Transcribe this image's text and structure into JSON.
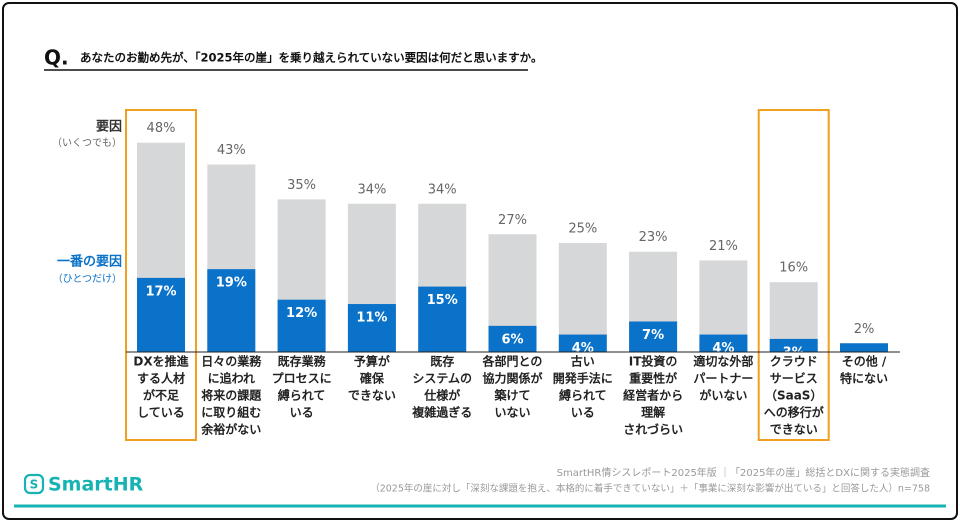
{
  "chart_data": {
    "type": "overlap-bar",
    "question_mark": "Q.",
    "title": "あなたのお勤め先が、「2025年の崖」を乗り越えられていない要因は何だと思いますか。",
    "categories": [
      [
        "DXを推進",
        "する人材",
        "が不足",
        "している"
      ],
      [
        "日々の業務",
        "に追われ",
        "将来の課題",
        "に取り組む",
        "余裕がない"
      ],
      [
        "既存業務",
        "プロセスに",
        "縛られて",
        "いる"
      ],
      [
        "予算が",
        "確保",
        "できない"
      ],
      [
        "既存",
        "システムの",
        "仕様が",
        "複雑過ぎる"
      ],
      [
        "各部門との",
        "協力関係が",
        "築けて",
        "いない"
      ],
      [
        "古い",
        "開発手法に",
        "縛られて",
        "いる"
      ],
      [
        "IT投資の",
        "重要性が",
        "経営者から",
        "理解",
        "されづらい"
      ],
      [
        "適切な外部",
        "パートナー",
        "がいない"
      ],
      [
        "クラウド",
        "サービス",
        "（SaaS）",
        "への移行が",
        "できない"
      ],
      [
        "その他 /",
        "特にない"
      ]
    ],
    "series": [
      {
        "name": "要因",
        "note": "（いくつでも）",
        "color": "#d5d7d9",
        "values": [
          48,
          43,
          35,
          34,
          34,
          27,
          25,
          23,
          21,
          16,
          2
        ],
        "value_labels": [
          "48%",
          "43%",
          "35%",
          "34%",
          "34%",
          "27%",
          "25%",
          "23%",
          "21%",
          "16%",
          "2%"
        ]
      },
      {
        "name": "一番の要因",
        "note": "（ひとつだけ）",
        "color": "#0b72c9",
        "values": [
          17,
          19,
          12,
          11,
          15,
          6,
          4,
          7,
          4,
          3,
          2
        ],
        "value_labels": [
          "17%",
          "19%",
          "12%",
          "11%",
          "15%",
          "6%",
          "4%",
          "7%",
          "4%",
          "3%",
          null
        ]
      }
    ],
    "highlight": [
      0,
      9
    ],
    "highlight_color": "#f0a020",
    "source": "SmartHR情シスレポート2025年版 ｜「2025年の崖」総括とDXに関する実態調査",
    "source_note": "（2025年の崖に対し「深刻な課題を抱え、本格的に着手できていない」＋「事業に深刻な影響が出ている」と回答した人）n=758",
    "logo": "SmartHR"
  }
}
